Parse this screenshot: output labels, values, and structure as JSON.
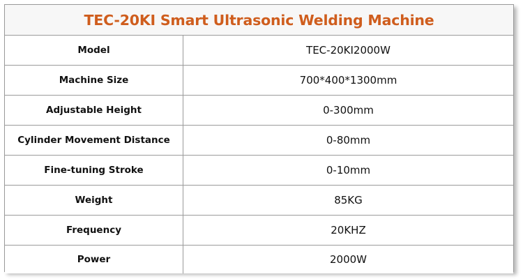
{
  "title": "TEC-20KI Smart Ultrasonic Welding Machine",
  "colors": {
    "title": "#cf5d1d",
    "border": "#9a9a9a"
  },
  "rows": [
    {
      "label": "Model",
      "value": "TEC-20KI2000W"
    },
    {
      "label": "Machine Size",
      "value": "700*400*1300mm"
    },
    {
      "label": "Adjustable Height",
      "value": "0-300mm"
    },
    {
      "label": "Cylinder Movement Distance",
      "value": "0-80mm"
    },
    {
      "label": "Fine-tuning Stroke",
      "value": "0-10mm"
    },
    {
      "label": "Weight",
      "value": "85KG"
    },
    {
      "label": "Frequency",
      "value": "20KHZ"
    },
    {
      "label": "Power",
      "value": "2000W"
    }
  ]
}
